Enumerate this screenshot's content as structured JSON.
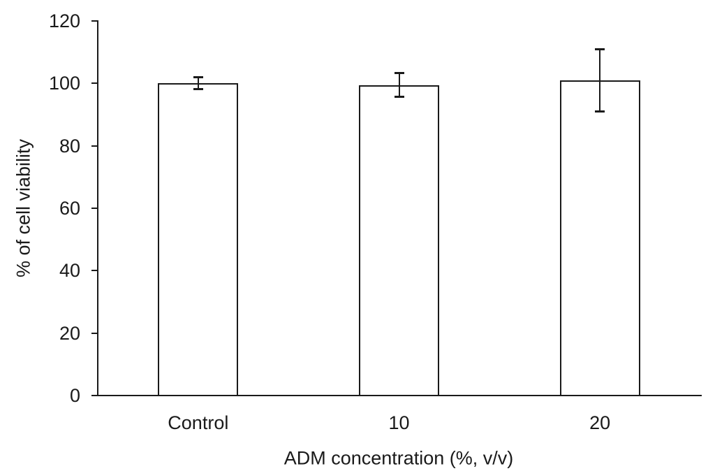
{
  "chart_data": {
    "type": "bar",
    "title": "",
    "categories": [
      "Control",
      "10",
      "20"
    ],
    "values": [
      100,
      99.5,
      101
    ],
    "error_bars": [
      2,
      4,
      10
    ],
    "xlabel": "ADM concentration (%, v/v)",
    "ylabel": "% of cell viability",
    "ylim": [
      0,
      120
    ],
    "yticks": [
      0,
      20,
      40,
      60,
      80,
      100,
      120
    ],
    "grid": false,
    "legend_position": "none",
    "bar_fill_color": "#ffffff",
    "line_color": "#1a1a1a",
    "background_color": "#ffffff"
  }
}
